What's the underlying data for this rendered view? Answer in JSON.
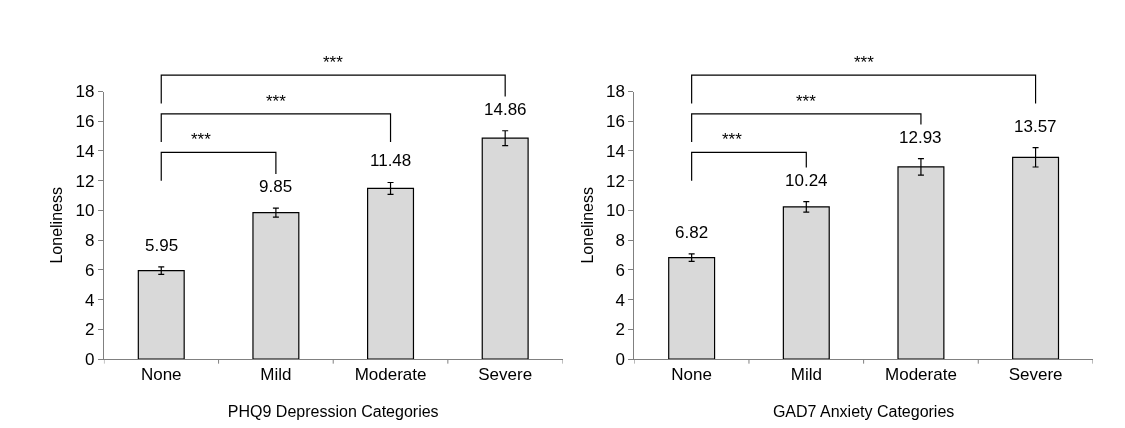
{
  "chart_data": [
    {
      "type": "bar",
      "xlabel": "PHQ9 Depression Categories",
      "ylabel": "Loneliness",
      "categories": [
        "None",
        "Mild",
        "Moderate",
        "Severe"
      ],
      "values": [
        5.95,
        9.85,
        11.48,
        14.86
      ],
      "errors": [
        0.25,
        0.3,
        0.4,
        0.5
      ],
      "color": "#d9d9d9",
      "ylim": [
        0,
        18
      ],
      "yticks": [
        0,
        2,
        4,
        6,
        8,
        10,
        12,
        14,
        16,
        18
      ],
      "data_labels": true,
      "annotations": [
        "***",
        "***",
        "***"
      ]
    },
    {
      "type": "bar",
      "xlabel": "GAD7 Anxiety Categories",
      "ylabel": "Loneliness",
      "categories": [
        "None",
        "Mild",
        "Moderate",
        "Severe"
      ],
      "values": [
        6.82,
        10.24,
        12.93,
        13.57
      ],
      "errors": [
        0.25,
        0.35,
        0.55,
        0.65
      ],
      "color": "#d9d9d9",
      "ylim": [
        0,
        18
      ],
      "yticks": [
        0,
        2,
        4,
        6,
        8,
        10,
        12,
        14,
        16,
        18
      ],
      "data_labels": true,
      "annotations": [
        "***",
        "***",
        "***"
      ]
    }
  ]
}
